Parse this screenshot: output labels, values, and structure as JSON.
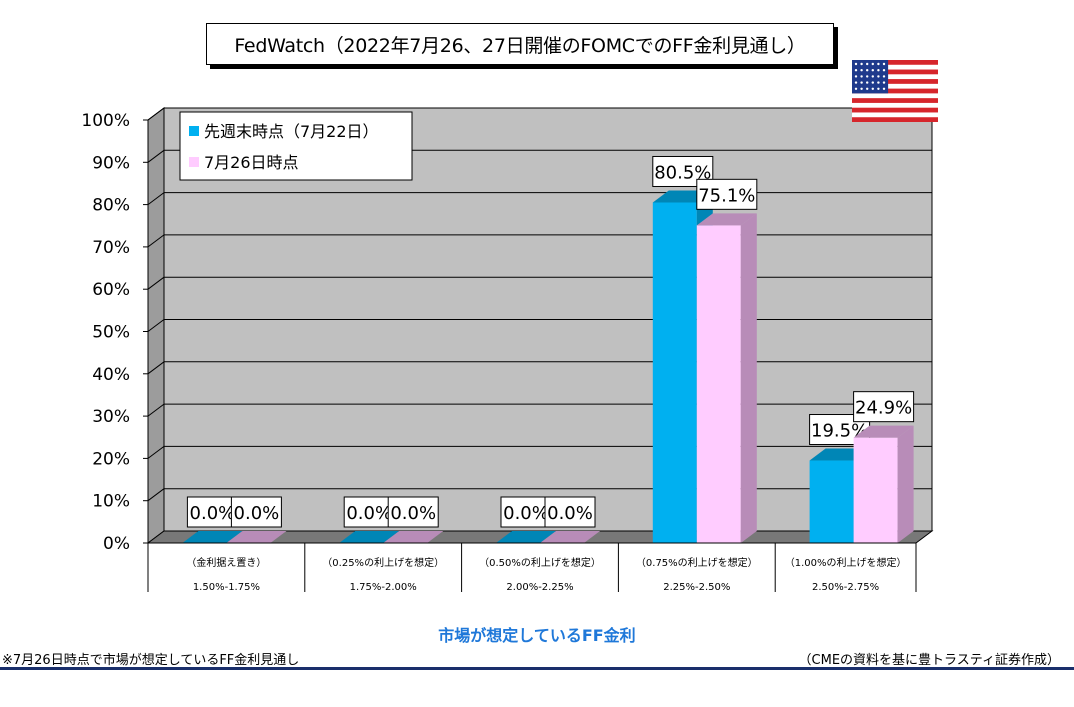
{
  "header": {
    "title": "FedWatch（2022年7月26、27日開催のFOMCでのFF金利見通し）"
  },
  "flag": {
    "name": "us-flag-icon",
    "stripe_red": "#d6262c",
    "stripe_white": "#ffffff",
    "canton_blue": "#1f3a8c"
  },
  "colors": {
    "plot_bg": "#c0c0c0",
    "side_wall": "#9c9c9c",
    "floor": "#787878",
    "series1": "#00b0f0",
    "series1_dark": "#0086b6",
    "series2": "#ffccff",
    "series2_dark": "#b88cb8",
    "footer_label": "#1f78d9",
    "rule": "#1a2f6b"
  },
  "chart_data": {
    "type": "bar",
    "categories": [
      {
        "line1": "（金利据え置き）",
        "line2": "1.50%-1.75%"
      },
      {
        "line1": "（0.25%の利上げを想定）",
        "line2": "1.75%-2.00%"
      },
      {
        "line1": "（0.50%の利上げを想定）",
        "line2": "2.00%-2.25%"
      },
      {
        "line1": "（0.75%の利上げを想定）",
        "line2": "2.25%-2.50%"
      },
      {
        "line1": "（1.00%の利上げを想定）",
        "line2": "2.50%-2.75%"
      }
    ],
    "series": [
      {
        "name": "先週末時点（7月22日）",
        "values": [
          0.0,
          0.0,
          0.0,
          80.5,
          19.5
        ],
        "labels": [
          "0.0%",
          "0.0%",
          "0.0%",
          "80.5%",
          "19.5%"
        ]
      },
      {
        "name": "7月26日時点",
        "values": [
          0.0,
          0.0,
          0.0,
          75.1,
          24.9
        ],
        "labels": [
          "0.0%",
          "0.0%",
          "0.0%",
          "75.1%",
          "24.9%"
        ]
      }
    ],
    "yticks": [
      "0%",
      "10%",
      "20%",
      "30%",
      "40%",
      "50%",
      "60%",
      "70%",
      "80%",
      "90%",
      "100%"
    ],
    "ylim": [
      0,
      100
    ],
    "xlabel": "市場が想定しているFF金利",
    "ylabel": "",
    "legend_position": "top-left",
    "grid": true
  },
  "notes": {
    "left": "※7月26日時点で市場が想定しているFF金利見通し",
    "right": "（CMEの資料を基に豊トラスティ証券作成）"
  }
}
